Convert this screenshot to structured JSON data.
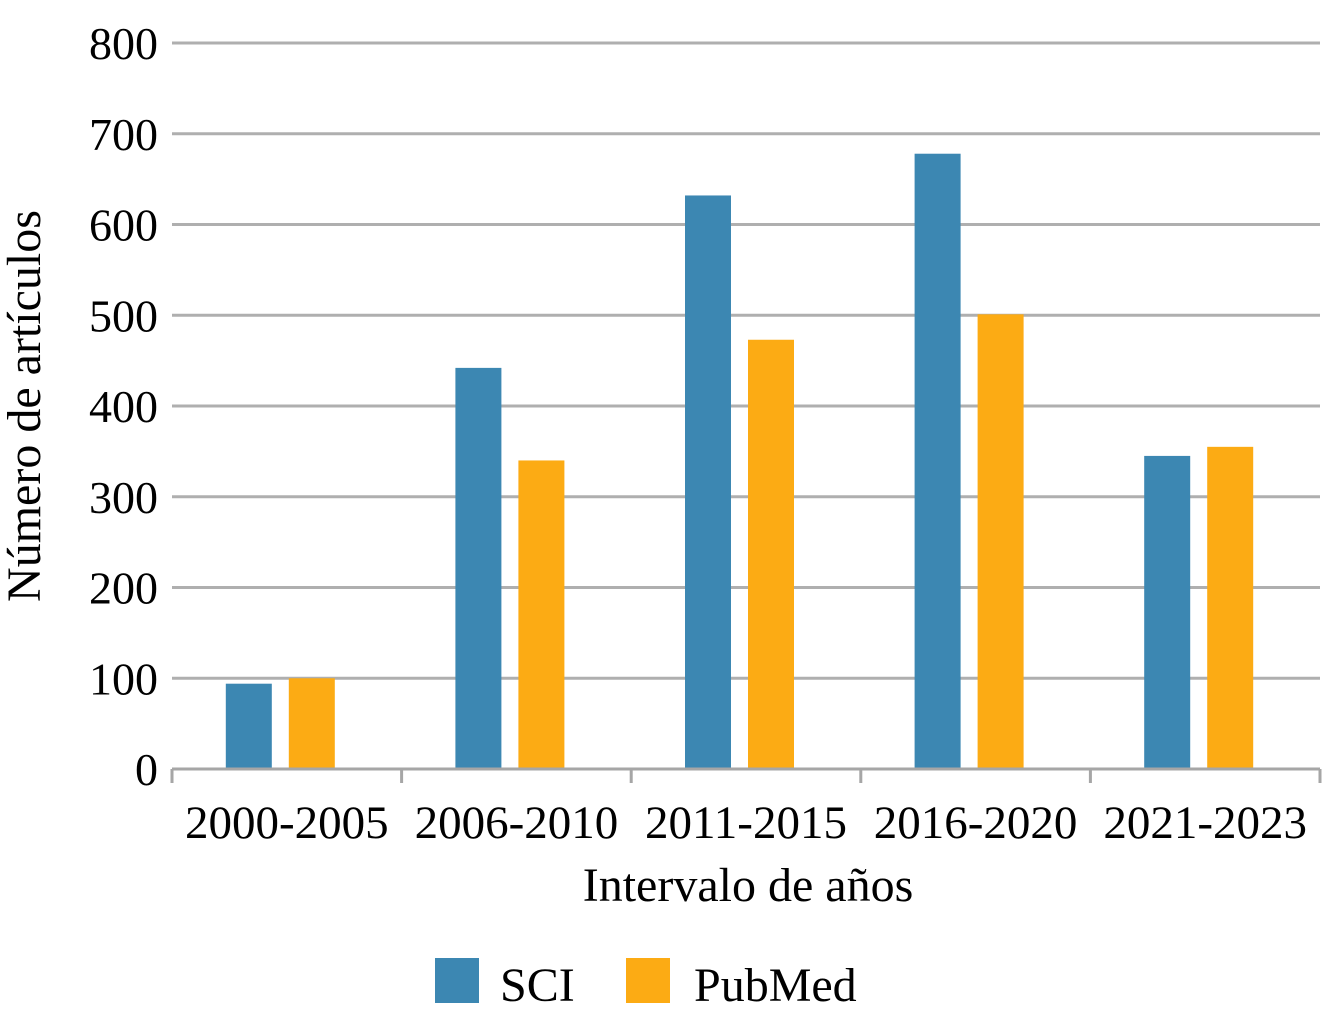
{
  "chart_data": {
    "type": "bar",
    "title": "",
    "categories": [
      "2000-2005",
      "2006-2010",
      "2011-2015",
      "2016-2020",
      "2021-2023"
    ],
    "series": [
      {
        "name": "SCI",
        "color": "#3C87B2",
        "values": [
          94,
          442,
          632,
          678,
          345
        ]
      },
      {
        "name": "PubMed",
        "color": "#FCAB14",
        "values": [
          100,
          340,
          473,
          501,
          355
        ]
      }
    ],
    "xlabel": "Intervalo de años",
    "ylabel": "Número de artículos",
    "ylim": [
      0,
      800
    ],
    "ytick_step": 100,
    "yticks": [
      "0",
      "100",
      "200",
      "300",
      "400",
      "500",
      "600",
      "700",
      "800"
    ],
    "grid": true,
    "legend_position": "bottom"
  },
  "colors": {
    "gridline": "#AFAFAF",
    "axis_line": "#A6A6A6",
    "text": "#000000",
    "background": "#FFFFFF",
    "sci": "#3C87B2",
    "pubmed": "#FCAB14"
  }
}
